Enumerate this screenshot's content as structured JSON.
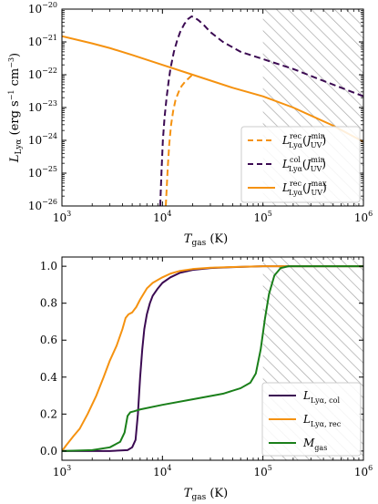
{
  "chart_data": [
    {
      "type": "line",
      "xlabel": "T_gas (K)",
      "ylabel": "L_Lyα (erg s⁻¹ cm⁻³)",
      "xscale": "log",
      "yscale": "log",
      "xlim": [
        1000,
        1000000
      ],
      "ylim": [
        1e-26,
        1e-20
      ],
      "xticks": [
        {
          "v": 1000,
          "m": "10",
          "e": "3"
        },
        {
          "v": 10000,
          "m": "10",
          "e": "4"
        },
        {
          "v": 100000,
          "m": "10",
          "e": "5"
        },
        {
          "v": 1000000,
          "m": "10",
          "e": "6"
        }
      ],
      "yticks": [
        {
          "v": 1e-20,
          "m": "10",
          "e": "−20"
        },
        {
          "v": 1e-21,
          "m": "10",
          "e": "−21"
        },
        {
          "v": 1e-22,
          "m": "10",
          "e": "−22"
        },
        {
          "v": 1e-23,
          "m": "10",
          "e": "−23"
        },
        {
          "v": 1e-24,
          "m": "10",
          "e": "−24"
        },
        {
          "v": 1e-25,
          "m": "10",
          "e": "−25"
        },
        {
          "v": 1e-26,
          "m": "10",
          "e": "−26"
        }
      ],
      "shaded_region": {
        "x": [
          100000,
          1000000
        ],
        "style": "hatched"
      },
      "legend_position": "lower-right",
      "series": [
        {
          "name": "L_Lyα^rec (J_UV^min)",
          "color": "#f59210",
          "dash": "dashed",
          "x": [
            10800,
            11000,
            11300,
            11700,
            12200,
            12800,
            13500,
            14500,
            15500,
            16700,
            18000,
            19500,
            21000
          ],
          "y": [
            1e-26,
            3e-26,
            1.5e-25,
            8e-25,
            3e-24,
            8e-24,
            1.7e-23,
            3e-23,
            4.5e-23,
            6e-23,
            7.5e-23,
            9.5e-23,
            1.1e-22
          ]
        },
        {
          "name": "L_Lyα^col (J_UV^min)",
          "color": "#3b0a52",
          "dash": "dashed",
          "x": [
            9500,
            9800,
            10100,
            10500,
            11000,
            11500,
            12000,
            13000,
            14000,
            15000,
            16500,
            18000,
            19500,
            21000,
            23000,
            26000,
            30000,
            40000,
            60000,
            100000,
            200000,
            400000,
            1000000
          ],
          "y": [
            1e-26,
            1.2e-25,
            1e-24,
            5e-24,
            2e-23,
            6e-23,
            1.5e-22,
            5e-22,
            1.1e-21,
            2e-21,
            3.5e-21,
            5e-21,
            6e-21,
            5.5e-21,
            4.5e-21,
            3.2e-21,
            2e-21,
            1e-21,
            5e-22,
            3e-22,
            1.5e-22,
            6.5e-23,
            2.2e-23
          ]
        },
        {
          "name": "L_Lyα^rec (J_UV^max)",
          "color": "#f59210",
          "dash": "solid",
          "x": [
            1000,
            2000,
            3000,
            5000,
            10000,
            20000,
            50000,
            100000,
            200000,
            500000,
            1000000
          ],
          "y": [
            1.5e-21,
            9e-22,
            6.5e-22,
            4e-22,
            2e-22,
            1e-22,
            4e-23,
            2.2e-23,
            1e-23,
            2.8e-24,
            9e-25
          ]
        }
      ]
    },
    {
      "type": "line",
      "xlabel": "T_gas (K)",
      "ylabel": "",
      "xscale": "log",
      "yscale": "linear",
      "xlim": [
        1000,
        1000000
      ],
      "ylim": [
        -0.05,
        1.05
      ],
      "xticks": [
        {
          "v": 1000,
          "m": "10",
          "e": "3"
        },
        {
          "v": 10000,
          "m": "10",
          "e": "4"
        },
        {
          "v": 100000,
          "m": "10",
          "e": "5"
        },
        {
          "v": 1000000,
          "m": "10",
          "e": "6"
        }
      ],
      "yticks": [
        {
          "v": 0.0,
          "label": "0.0"
        },
        {
          "v": 0.2,
          "label": "0.2"
        },
        {
          "v": 0.4,
          "label": "0.4"
        },
        {
          "v": 0.6,
          "label": "0.6"
        },
        {
          "v": 0.8,
          "label": "0.8"
        },
        {
          "v": 1.0,
          "label": "1.0"
        }
      ],
      "shaded_region": {
        "x": [
          100000,
          1000000
        ],
        "style": "hatched"
      },
      "legend_position": "lower-right",
      "series": [
        {
          "name": "L_Lyα,col",
          "color": "#3b0a52",
          "dash": "solid",
          "x": [
            1000,
            3000,
            4500,
            5000,
            5400,
            5700,
            6000,
            6300,
            6600,
            7000,
            7500,
            8000,
            9000,
            10000,
            12000,
            15000,
            20000,
            30000,
            50000,
            100000,
            1000000
          ],
          "y": [
            0.0,
            0.0,
            0.005,
            0.02,
            0.06,
            0.2,
            0.4,
            0.55,
            0.66,
            0.74,
            0.8,
            0.84,
            0.88,
            0.91,
            0.94,
            0.965,
            0.98,
            0.99,
            0.995,
            1.0,
            1.0
          ]
        },
        {
          "name": "L_Lyα,rec",
          "color": "#f59210",
          "dash": "solid",
          "x": [
            1000,
            1100,
            1300,
            1500,
            1800,
            2200,
            2600,
            3000,
            3500,
            4000,
            4300,
            4600,
            5000,
            5500,
            6000,
            7000,
            8000,
            10000,
            12000,
            15000,
            20000,
            30000,
            50000,
            100000,
            1000000
          ],
          "y": [
            0.0,
            0.03,
            0.08,
            0.12,
            0.2,
            0.3,
            0.4,
            0.49,
            0.57,
            0.66,
            0.72,
            0.74,
            0.75,
            0.78,
            0.82,
            0.88,
            0.91,
            0.94,
            0.96,
            0.975,
            0.985,
            0.992,
            0.996,
            1.0,
            1.0
          ]
        },
        {
          "name": "M_gas",
          "color": "#1a7f1a",
          "dash": "solid",
          "x": [
            1000,
            2000,
            3000,
            3800,
            4200,
            4500,
            4800,
            5200,
            6000,
            10000,
            20000,
            40000,
            60000,
            75000,
            85000,
            95000,
            105000,
            115000,
            130000,
            150000,
            180000,
            300000,
            1000000
          ],
          "y": [
            0.0,
            0.005,
            0.02,
            0.05,
            0.1,
            0.19,
            0.21,
            0.215,
            0.225,
            0.25,
            0.28,
            0.31,
            0.34,
            0.37,
            0.42,
            0.55,
            0.72,
            0.85,
            0.95,
            0.99,
            1.0,
            1.0,
            1.0
          ]
        }
      ]
    }
  ]
}
